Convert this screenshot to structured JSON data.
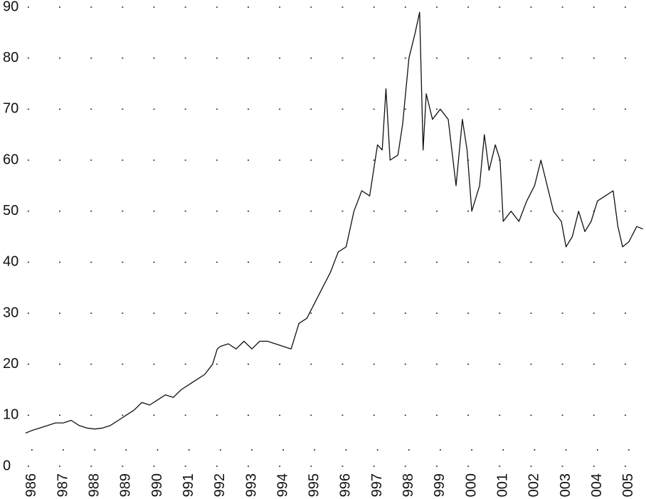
{
  "chart_data": {
    "type": "line",
    "color": "#111111",
    "x": [
      -0.2,
      0,
      0.25,
      0.5,
      0.75,
      1,
      1.25,
      1.5,
      1.75,
      2,
      2.25,
      2.5,
      2.75,
      3,
      3.25,
      3.5,
      3.75,
      4,
      4.25,
      4.5,
      4.75,
      5,
      5.25,
      5.5,
      5.75,
      5.9,
      6,
      6.25,
      6.5,
      6.75,
      7,
      7.25,
      7.5,
      7.75,
      8,
      8.25,
      8.5,
      8.75,
      9,
      9.25,
      9.5,
      9.75,
      10,
      10.25,
      10.5,
      10.75,
      11,
      11.15,
      11.27,
      11.4,
      11.65,
      11.8,
      12,
      12.2,
      12.34,
      12.45,
      12.55,
      12.75,
      13,
      13.25,
      13.5,
      13.7,
      13.85,
      14,
      14.25,
      14.4,
      14.55,
      14.75,
      14.9,
      15,
      15.25,
      15.5,
      15.75,
      16,
      16.2,
      16.4,
      16.6,
      16.85,
      17,
      17.2,
      17.4,
      17.6,
      17.8,
      18,
      18.25,
      18.5,
      18.65,
      18.8,
      19,
      19.25,
      19.45
    ],
    "values": [
      6.5,
      7,
      7.5,
      8,
      8.5,
      8.5,
      9,
      8,
      7.5,
      7.3,
      7.5,
      8,
      9,
      10,
      11,
      12.5,
      12,
      13,
      14,
      13.5,
      15,
      16,
      17,
      18,
      20,
      23,
      23.5,
      24,
      23,
      24.5,
      23,
      24.5,
      24.5,
      24,
      23.5,
      23,
      28,
      29,
      32,
      35,
      38,
      42,
      43,
      50,
      54,
      53,
      63,
      62,
      74,
      60,
      61,
      67,
      80,
      85,
      89,
      62,
      73,
      68,
      70,
      68,
      55,
      68,
      62,
      50,
      55,
      65,
      58,
      63,
      60,
      48,
      50,
      48,
      52,
      55,
      60,
      55,
      50,
      48,
      43,
      45,
      50,
      46,
      48,
      52,
      53,
      54,
      47,
      43,
      44,
      47,
      46.5
    ],
    "xlim": [
      -0.2,
      19.5
    ],
    "xticks": [
      {
        "value": 0,
        "label": "986"
      },
      {
        "value": 1,
        "label": "987"
      },
      {
        "value": 2,
        "label": "988"
      },
      {
        "value": 3,
        "label": "989"
      },
      {
        "value": 4,
        "label": "990"
      },
      {
        "value": 5,
        "label": "991"
      },
      {
        "value": 6,
        "label": "992"
      },
      {
        "value": 7,
        "label": "993"
      },
      {
        "value": 8,
        "label": "994"
      },
      {
        "value": 9,
        "label": "995"
      },
      {
        "value": 10,
        "label": "996"
      },
      {
        "value": 11,
        "label": "997"
      },
      {
        "value": 12,
        "label": "998"
      },
      {
        "value": 13,
        "label": "999"
      },
      {
        "value": 14,
        "label": "000"
      },
      {
        "value": 15,
        "label": "001"
      },
      {
        "value": 16,
        "label": "002"
      },
      {
        "value": 17,
        "label": "003"
      },
      {
        "value": 18,
        "label": "004"
      },
      {
        "value": 19,
        "label": "005"
      }
    ],
    "ylim": [
      0,
      90
    ],
    "yticks": [
      0,
      10,
      20,
      30,
      40,
      50,
      60,
      70,
      80,
      90
    ],
    "grid": true
  }
}
